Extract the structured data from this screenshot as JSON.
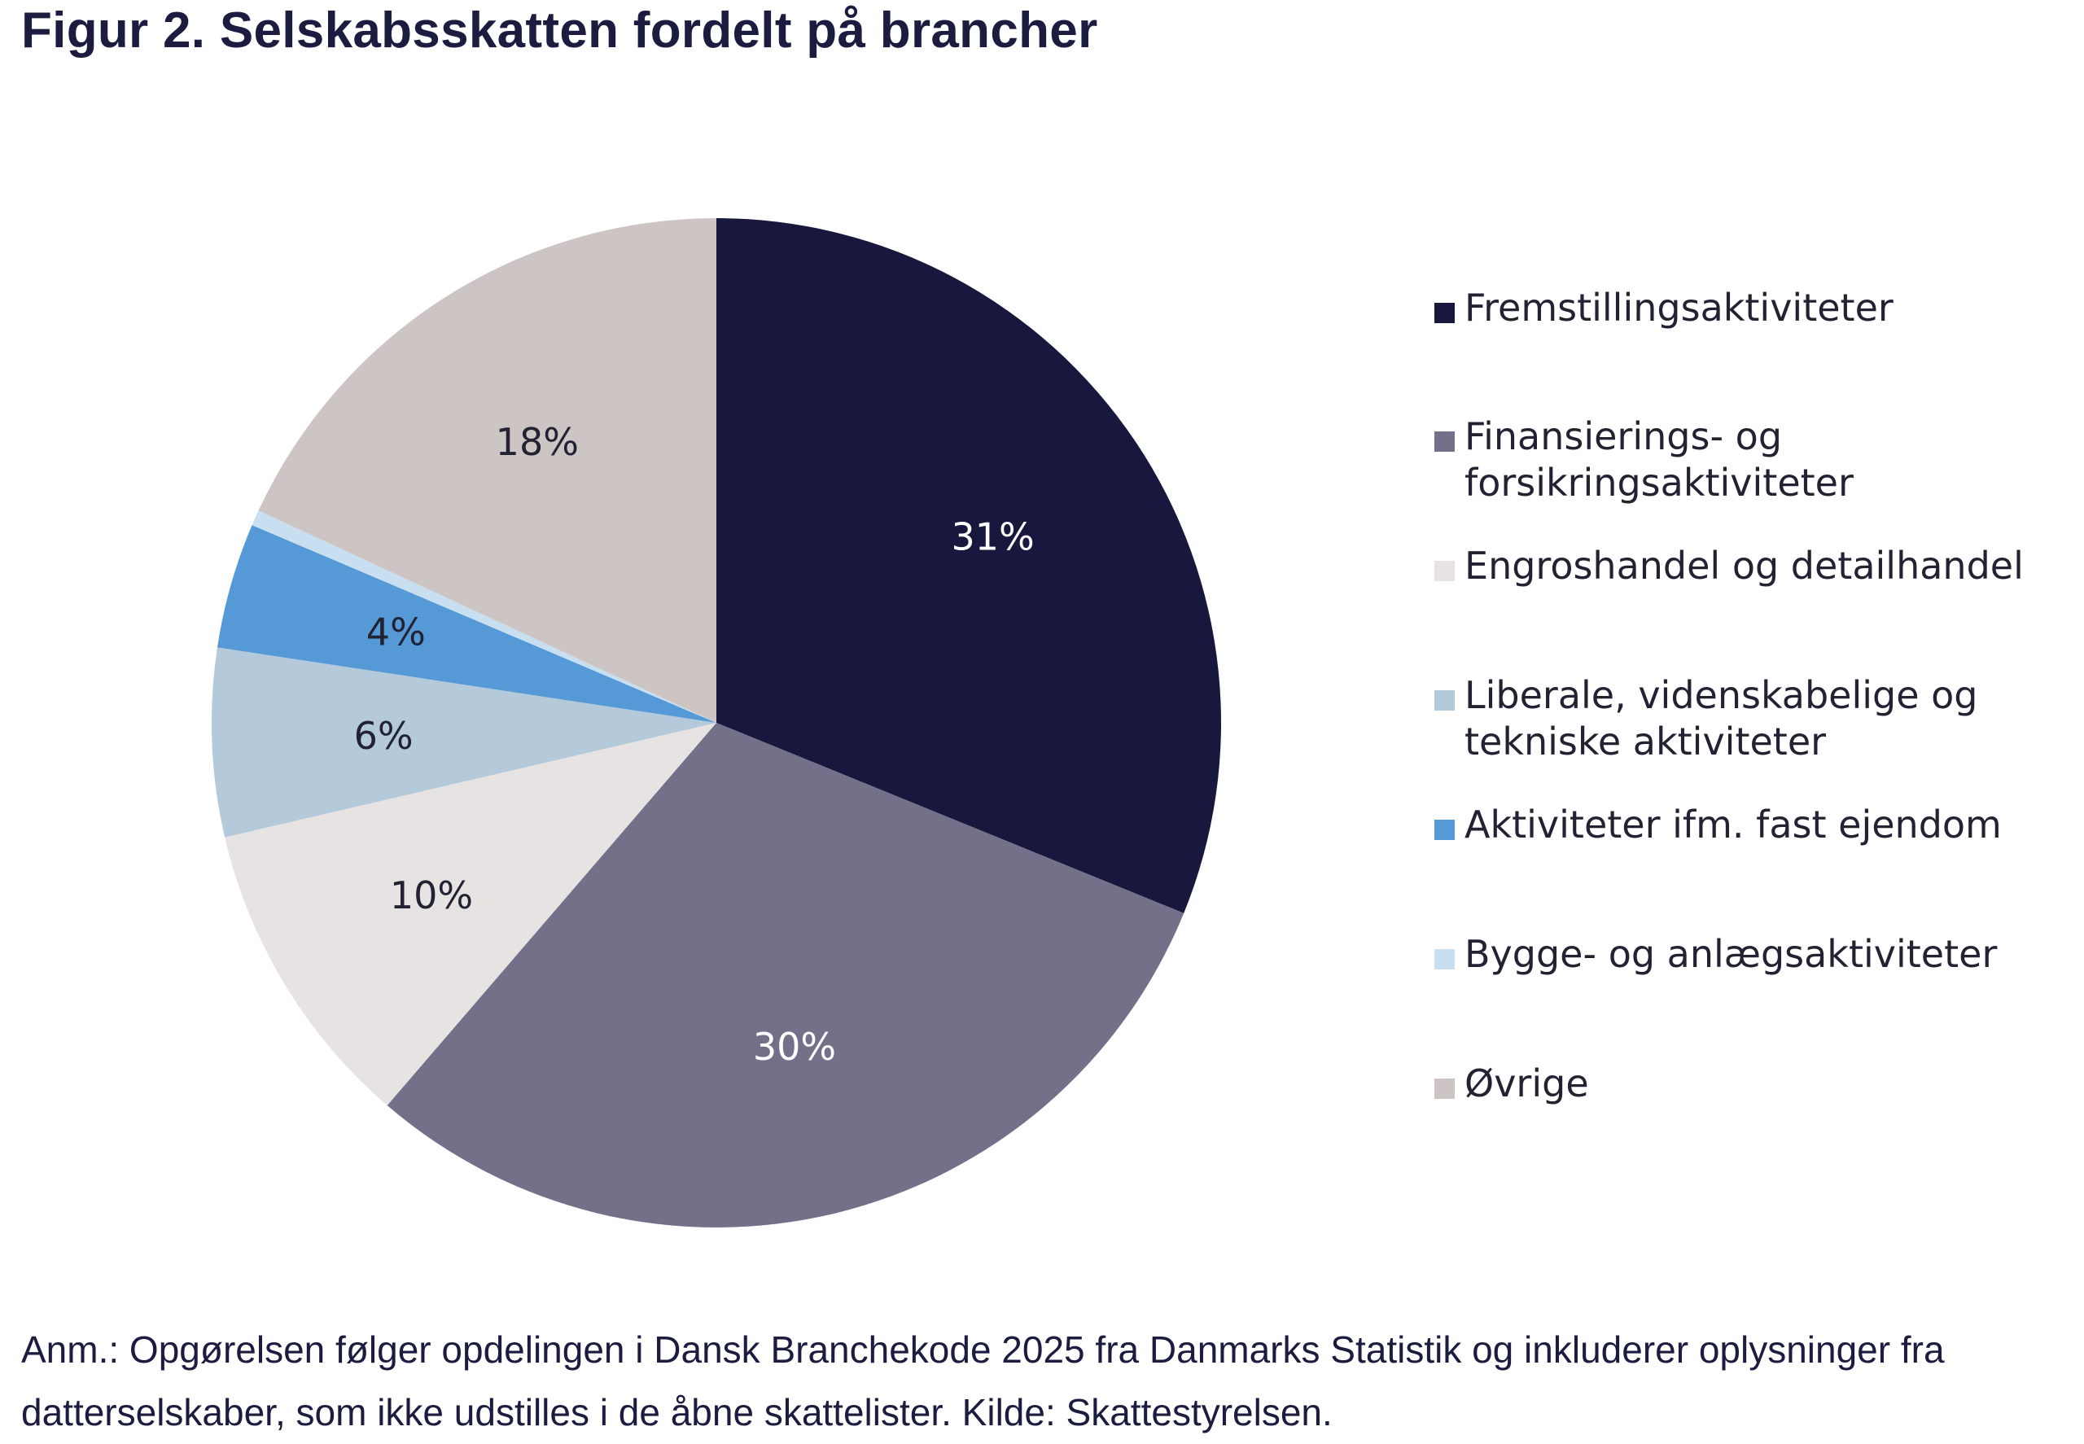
{
  "chart_data": {
    "type": "pie",
    "title": "Figur 2. Selskabsskatten fordelt på brancher",
    "categories": [
      "Fremstillingsaktiviteter",
      "Finansierings- og\nforsikringsaktiviteter",
      "Engroshandel og detailhandel",
      "Liberale, videnskabelige og\ntekniske aktiviteter",
      "Aktiviteter ifm. fast ejendom",
      "Bygge- og anlægsaktiviteter",
      "Øvrige"
    ],
    "values": [
      31,
      30,
      10,
      6,
      4,
      0.5,
      18
    ],
    "value_labels": [
      "31%",
      "30%",
      "10%",
      "6%",
      "4%",
      "",
      "18%"
    ],
    "colors": [
      "#18173d",
      "#727189",
      "#e6e3e2",
      "#b4cada",
      "#5599d6",
      "#c8dff2",
      "#cdc5c3"
    ],
    "label_colors": [
      "#ffffff",
      "#ffffff",
      "#222233",
      "#222233",
      "#222233",
      "#222233",
      "#222233"
    ],
    "legend_position": "right"
  },
  "note": "Anm.: Opgørelsen følger opdelingen i Dansk Branchekode 2025 fra Danmarks Statistik og inkluderer oplysninger fra datterselskaber, som ikke udstilles i de åbne skattelister. Kilde: Skattestyrelsen."
}
